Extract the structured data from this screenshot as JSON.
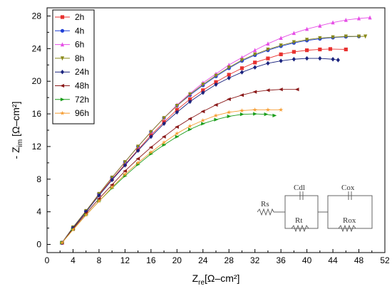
{
  "chart_data": {
    "type": "scatter",
    "xlabel": {
      "main": "Z",
      "sub": "re",
      "unit": "[Ω–cm²]"
    },
    "ylabel": {
      "prefix": "- Z",
      "sub": "im",
      "unit": " [Ω–cm²]"
    },
    "xlim": [
      0,
      52
    ],
    "ylim": [
      -1,
      29
    ],
    "xticks": [
      0,
      4,
      8,
      12,
      16,
      20,
      24,
      28,
      32,
      36,
      40,
      44,
      48,
      52
    ],
    "yticks": [
      0,
      4,
      8,
      12,
      16,
      20,
      24,
      28
    ],
    "legend_position": "top-left",
    "series": [
      {
        "name": "2h",
        "color": "#e8312f",
        "marker": "square",
        "x": [
          2.3,
          4,
          6,
          8,
          10,
          12,
          14,
          16,
          18,
          20,
          22,
          24,
          26,
          28,
          30,
          32,
          34,
          36,
          38,
          40,
          42,
          43.6,
          46
        ],
        "y": [
          0.2,
          2.0,
          4.0,
          6.1,
          8.0,
          9.8,
          11.6,
          13.4,
          15.0,
          16.5,
          17.8,
          18.9,
          19.9,
          20.8,
          21.6,
          22.3,
          22.8,
          23.3,
          23.6,
          23.8,
          23.9,
          23.95,
          23.9
        ]
      },
      {
        "name": "4h",
        "color": "#1f3fd6",
        "marker": "circle",
        "x": [
          2.3,
          4,
          6,
          8,
          10,
          12,
          14,
          16,
          18,
          20,
          22,
          24,
          26,
          28,
          30,
          32,
          34,
          36,
          38,
          40,
          42,
          44,
          46,
          48
        ],
        "y": [
          0.2,
          2.1,
          4.1,
          6.2,
          8.2,
          10.1,
          12.0,
          13.8,
          15.5,
          17.0,
          18.3,
          19.5,
          20.6,
          21.6,
          22.5,
          23.2,
          23.8,
          24.3,
          24.7,
          25.0,
          25.2,
          25.35,
          25.45,
          25.5
        ]
      },
      {
        "name": "6h",
        "color": "#e64ee6",
        "marker": "triangle",
        "x": [
          2.3,
          4,
          6,
          8,
          10,
          12,
          14,
          16,
          18,
          20,
          22,
          24,
          26,
          28,
          30,
          32,
          34,
          36,
          38,
          40,
          42,
          44,
          46,
          48,
          49.7
        ],
        "y": [
          0.2,
          2.1,
          4.1,
          6.2,
          8.2,
          10.1,
          12.0,
          13.8,
          15.5,
          17.1,
          18.5,
          19.8,
          20.9,
          22.0,
          22.9,
          23.8,
          24.6,
          25.3,
          25.9,
          26.4,
          26.8,
          27.2,
          27.5,
          27.7,
          27.8
        ]
      },
      {
        "name": "8h",
        "color": "#8a8a1a",
        "marker": "triangle-down",
        "x": [
          2.3,
          4,
          6,
          8,
          10,
          12,
          14,
          16,
          18,
          20,
          22,
          24,
          26,
          28,
          30,
          32,
          34,
          36,
          38,
          40,
          42,
          44,
          46,
          48,
          49
        ],
        "y": [
          0.2,
          2.1,
          4.1,
          6.2,
          8.2,
          10.1,
          12.0,
          13.8,
          15.5,
          17.0,
          18.4,
          19.6,
          20.7,
          21.7,
          22.6,
          23.3,
          23.9,
          24.4,
          24.8,
          25.1,
          25.3,
          25.4,
          25.5,
          25.5,
          25.5
        ]
      },
      {
        "name": "24h",
        "color": "#1a237e",
        "marker": "diamond",
        "x": [
          2.3,
          4,
          6,
          8,
          10,
          12,
          14,
          16,
          18,
          20,
          22,
          24,
          26,
          28,
          30,
          32,
          34,
          36,
          38,
          40,
          42,
          44,
          44.8
        ],
        "y": [
          0.2,
          2.0,
          4.0,
          6.0,
          7.9,
          9.7,
          11.5,
          13.2,
          14.8,
          16.2,
          17.5,
          18.6,
          19.6,
          20.4,
          21.1,
          21.7,
          22.2,
          22.5,
          22.7,
          22.8,
          22.8,
          22.7,
          22.6
        ]
      },
      {
        "name": "48h",
        "color": "#8b1a1a",
        "marker": "triangle-left",
        "x": [
          2.3,
          4,
          6,
          8,
          10,
          12,
          14,
          16,
          18,
          20,
          22,
          24,
          26,
          28,
          30,
          32,
          34,
          36,
          38.5
        ],
        "y": [
          0.2,
          1.9,
          3.8,
          5.6,
          7.3,
          9.0,
          10.5,
          11.9,
          13.2,
          14.4,
          15.4,
          16.3,
          17.1,
          17.8,
          18.3,
          18.7,
          18.9,
          19.0,
          19.0
        ]
      },
      {
        "name": "72h",
        "color": "#1b9e1b",
        "marker": "triangle-right",
        "x": [
          2.3,
          4,
          6,
          8,
          10,
          12,
          14,
          16,
          18,
          20,
          22,
          24,
          26,
          28,
          30,
          32,
          33.7,
          35
        ],
        "y": [
          0.2,
          1.8,
          3.6,
          5.3,
          6.9,
          8.4,
          9.8,
          11.1,
          12.2,
          13.2,
          14.1,
          14.8,
          15.3,
          15.7,
          15.95,
          16.0,
          15.95,
          15.8
        ]
      },
      {
        "name": "96h",
        "color": "#f59b2e",
        "marker": "star",
        "x": [
          2.3,
          4,
          6,
          8,
          10,
          12,
          14,
          16,
          18,
          20,
          22,
          24,
          26,
          28,
          30,
          32,
          34,
          36
        ],
        "y": [
          0.2,
          1.8,
          3.6,
          5.3,
          7.0,
          8.6,
          10.0,
          11.3,
          12.5,
          13.6,
          14.5,
          15.2,
          15.8,
          16.2,
          16.4,
          16.5,
          16.5,
          16.5
        ]
      }
    ]
  },
  "inset": {
    "labels": {
      "rs": "Rs",
      "cdl": "Cdl",
      "rt": "Rt",
      "cox": "Cox",
      "rox": "Rox"
    }
  }
}
